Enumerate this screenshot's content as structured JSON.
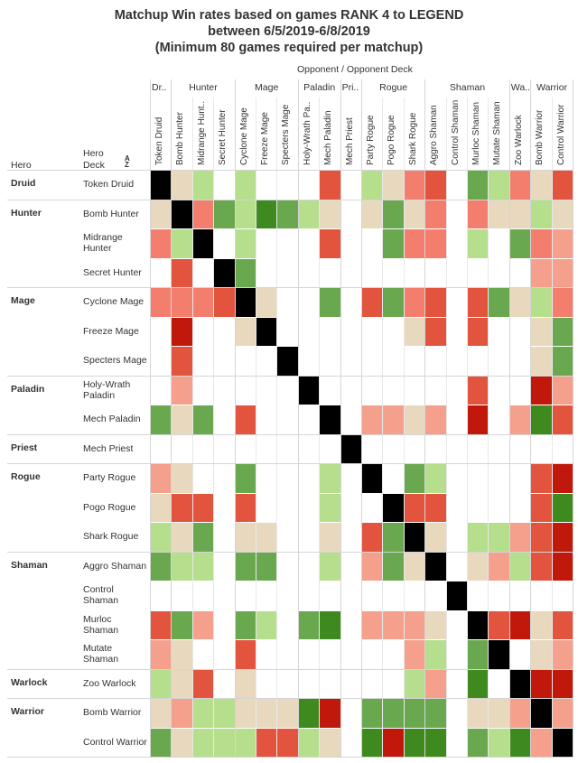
{
  "title_lines": [
    "Matchup Win rates based on games RANK 4 to LEGEND",
    "between 6/5/2019-6/8/2019",
    "(Minimum 80 games required per matchup)"
  ],
  "header": {
    "opponent_label": "Opponent",
    "separator": "/",
    "opponent_deck_label": "Opponent Deck",
    "hero_label": "Hero",
    "hero_label_2": "Hero",
    "deck_label": "Deck"
  },
  "colors": {
    "diagonal": "#000000",
    "strong_fav": "#3e8a1f",
    "fav": "#6aa84f",
    "slight_fav": "#99cc6b",
    "light_fav": "#b5df8c",
    "neutral": "#e8d9be",
    "light_unfav": "#f4a08c",
    "slight_unfav": "#f47e6e",
    "unfav": "#e2543d",
    "strong_unfav": "#c0190c",
    "empty": "#ffffff"
  },
  "chart_data": {
    "type": "heatmap",
    "title": "Matchup Win rates based on games RANK 4 to LEGEND between 6/5/2019-6/8/2019 (Minimum 80 games required per matchup)",
    "opponent_groups": [
      {
        "name": "Dr..",
        "span": 1
      },
      {
        "name": "Hunter",
        "span": 3
      },
      {
        "name": "Mage",
        "span": 3
      },
      {
        "name": "Paladin",
        "span": 2
      },
      {
        "name": "Pri..",
        "span": 1
      },
      {
        "name": "Rogue",
        "span": 3
      },
      {
        "name": "Shaman",
        "span": 4
      },
      {
        "name": "Wa..",
        "span": 1
      },
      {
        "name": "Warrior",
        "span": 2
      }
    ],
    "columns": [
      "Token Druid",
      "Bomb Hunter",
      "Midrange Hunt..",
      "Secret Hunter",
      "Cyclone Mage",
      "Freeze Mage",
      "Specters Mage",
      "Holy-Wrath Pa..",
      "Mech Paladin",
      "Mech Priest",
      "Party Rogue",
      "Pogo Rogue",
      "Shark Rogue",
      "Aggro Shaman",
      "Control Shaman",
      "Murloc Shaman",
      "Mutate Shaman",
      "Zoo Warlock",
      "Bomb Warrior",
      "Control Warrior"
    ],
    "row_groups": [
      {
        "hero": "Druid",
        "rows": [
          0
        ]
      },
      {
        "hero": "Hunter",
        "rows": [
          1,
          2,
          3
        ]
      },
      {
        "hero": "Mage",
        "rows": [
          4,
          5,
          6
        ]
      },
      {
        "hero": "Paladin",
        "rows": [
          7,
          8
        ]
      },
      {
        "hero": "Priest",
        "rows": [
          9
        ]
      },
      {
        "hero": "Rogue",
        "rows": [
          10,
          11,
          12
        ]
      },
      {
        "hero": "Shaman",
        "rows": [
          13,
          14,
          15,
          16
        ]
      },
      {
        "hero": "Warlock",
        "rows": [
          17
        ]
      },
      {
        "hero": "Warrior",
        "rows": [
          18,
          19
        ]
      }
    ],
    "rows": [
      {
        "deck": [
          "Token Druid"
        ],
        "cells": [
          "X",
          "N",
          "LF",
          "_",
          "LF",
          "_",
          "_",
          "_",
          "U",
          "_",
          "LF",
          "N",
          "SU",
          "U",
          "_",
          "F",
          "LF",
          "SU",
          "N",
          "U"
        ]
      },
      {
        "deck": [
          "Bomb Hunter"
        ],
        "cells": [
          "N",
          "X",
          "SU",
          "F",
          "LF",
          "SF",
          "F",
          "LF",
          "N",
          "_",
          "N",
          "F",
          "N",
          "SU",
          "_",
          "SU",
          "N",
          "N",
          "LF",
          "N"
        ]
      },
      {
        "deck": [
          "Midrange",
          "Hunter"
        ],
        "cells": [
          "SU",
          "LF",
          "X",
          "_",
          "LF",
          "_",
          "_",
          "_",
          "U",
          "_",
          "_",
          "F",
          "SU",
          "SU",
          "_",
          "LF",
          "_",
          "F",
          "SU",
          "LU"
        ]
      },
      {
        "deck": [
          "Secret Hunter"
        ],
        "cells": [
          "_",
          "U",
          "_",
          "X",
          "F",
          "_",
          "_",
          "_",
          "_",
          "_",
          "_",
          "_",
          "_",
          "_",
          "_",
          "_",
          "_",
          "_",
          "LU",
          "LU"
        ]
      },
      {
        "deck": [
          "Cyclone Mage"
        ],
        "cells": [
          "SU",
          "SU",
          "SU",
          "U",
          "X",
          "N",
          "_",
          "_",
          "F",
          "_",
          "U",
          "F",
          "SU",
          "U",
          "_",
          "U",
          "F",
          "N",
          "LF",
          "SU"
        ]
      },
      {
        "deck": [
          "Freeze Mage"
        ],
        "cells": [
          "_",
          "SN",
          "_",
          "_",
          "N",
          "X",
          "_",
          "_",
          "_",
          "_",
          "_",
          "_",
          "N",
          "U",
          "_",
          "U",
          "_",
          "_",
          "N",
          "F"
        ]
      },
      {
        "deck": [
          "Specters Mage"
        ],
        "cells": [
          "_",
          "U",
          "_",
          "_",
          "_",
          "_",
          "X",
          "_",
          "_",
          "_",
          "_",
          "_",
          "_",
          "_",
          "_",
          "_",
          "_",
          "_",
          "N",
          "F"
        ]
      },
      {
        "deck": [
          "Holy-Wrath",
          "Paladin"
        ],
        "cells": [
          "_",
          "LU",
          "_",
          "_",
          "_",
          "_",
          "_",
          "X",
          "_",
          "_",
          "_",
          "_",
          "_",
          "_",
          "_",
          "U",
          "_",
          "_",
          "SN",
          "LU"
        ]
      },
      {
        "deck": [
          "Mech Paladin"
        ],
        "cells": [
          "F",
          "N",
          "F",
          "_",
          "U",
          "_",
          "_",
          "_",
          "X",
          "_",
          "LU",
          "LU",
          "N",
          "LU",
          "_",
          "SN",
          "_",
          "LU",
          "SF",
          "U"
        ]
      },
      {
        "deck": [
          "Mech Priest"
        ],
        "cells": [
          "_",
          "_",
          "_",
          "_",
          "_",
          "_",
          "_",
          "_",
          "_",
          "X",
          "_",
          "_",
          "_",
          "_",
          "_",
          "_",
          "_",
          "_",
          "_",
          "_"
        ]
      },
      {
        "deck": [
          "Party Rogue"
        ],
        "cells": [
          "LU",
          "N",
          "_",
          "_",
          "F",
          "_",
          "_",
          "_",
          "LF",
          "_",
          "X",
          "_",
          "F",
          "LF",
          "_",
          "_",
          "_",
          "_",
          "U",
          "SN"
        ]
      },
      {
        "deck": [
          "Pogo Rogue"
        ],
        "cells": [
          "N",
          "U",
          "U",
          "_",
          "U",
          "_",
          "_",
          "_",
          "LF",
          "_",
          "_",
          "X",
          "U",
          "U",
          "_",
          "_",
          "_",
          "_",
          "U",
          "SF"
        ]
      },
      {
        "deck": [
          "Shark Rogue"
        ],
        "cells": [
          "LF",
          "N",
          "F",
          "_",
          "N",
          "N",
          "_",
          "_",
          "N",
          "_",
          "U",
          "F",
          "X",
          "N",
          "_",
          "LF",
          "LF",
          "LU",
          "U",
          "SN"
        ]
      },
      {
        "deck": [
          "Aggro Shaman"
        ],
        "cells": [
          "F",
          "LF",
          "LF",
          "_",
          "F",
          "F",
          "_",
          "_",
          "LF",
          "_",
          "LU",
          "F",
          "N",
          "X",
          "_",
          "N",
          "LU",
          "LF",
          "U",
          "SN"
        ]
      },
      {
        "deck": [
          "Control",
          "Shaman"
        ],
        "cells": [
          "_",
          "_",
          "_",
          "_",
          "_",
          "_",
          "_",
          "_",
          "_",
          "_",
          "_",
          "_",
          "_",
          "_",
          "X",
          "_",
          "_",
          "_",
          "_",
          "_"
        ]
      },
      {
        "deck": [
          "Murloc",
          "Shaman"
        ],
        "cells": [
          "U",
          "F",
          "LU",
          "_",
          "F",
          "LF",
          "_",
          "F",
          "SF",
          "_",
          "LU",
          "LU",
          "LU",
          "N",
          "_",
          "X",
          "U",
          "SN",
          "N",
          "U"
        ]
      },
      {
        "deck": [
          "Mutate",
          "Shaman"
        ],
        "cells": [
          "LU",
          "N",
          "_",
          "_",
          "U",
          "_",
          "_",
          "_",
          "_",
          "_",
          "_",
          "_",
          "LU",
          "LF",
          "_",
          "F",
          "X",
          "_",
          "N",
          "LU"
        ]
      },
      {
        "deck": [
          "Zoo Warlock"
        ],
        "cells": [
          "LF",
          "N",
          "U",
          "_",
          "N",
          "_",
          "_",
          "_",
          "_",
          "_",
          "_",
          "_",
          "LF",
          "LU",
          "_",
          "SF",
          "_",
          "X",
          "SN",
          "SN"
        ]
      },
      {
        "deck": [
          "Bomb Warrior"
        ],
        "cells": [
          "N",
          "LU",
          "LF",
          "LF",
          "N",
          "N",
          "N",
          "SF",
          "SN",
          "_",
          "F",
          "F",
          "F",
          "F",
          "_",
          "N",
          "N",
          "LU",
          "X",
          "LU"
        ]
      },
      {
        "deck": [
          "Control Warrior"
        ],
        "cells": [
          "F",
          "N",
          "LF",
          "LF",
          "LF",
          "U",
          "U",
          "LF",
          "N",
          "_",
          "SF",
          "SN",
          "SF",
          "SF",
          "_",
          "F",
          "LF",
          "SF",
          "LU",
          "X"
        ]
      }
    ],
    "legend": {
      "X": "diagonal",
      "SF": "strong_fav",
      "F": "fav",
      "LF": "light_fav",
      "N": "neutral",
      "LU": "light_unfav",
      "SU": "slight_unfav",
      "U": "unfav",
      "SN": "strong_unfav",
      "_": "empty"
    }
  }
}
